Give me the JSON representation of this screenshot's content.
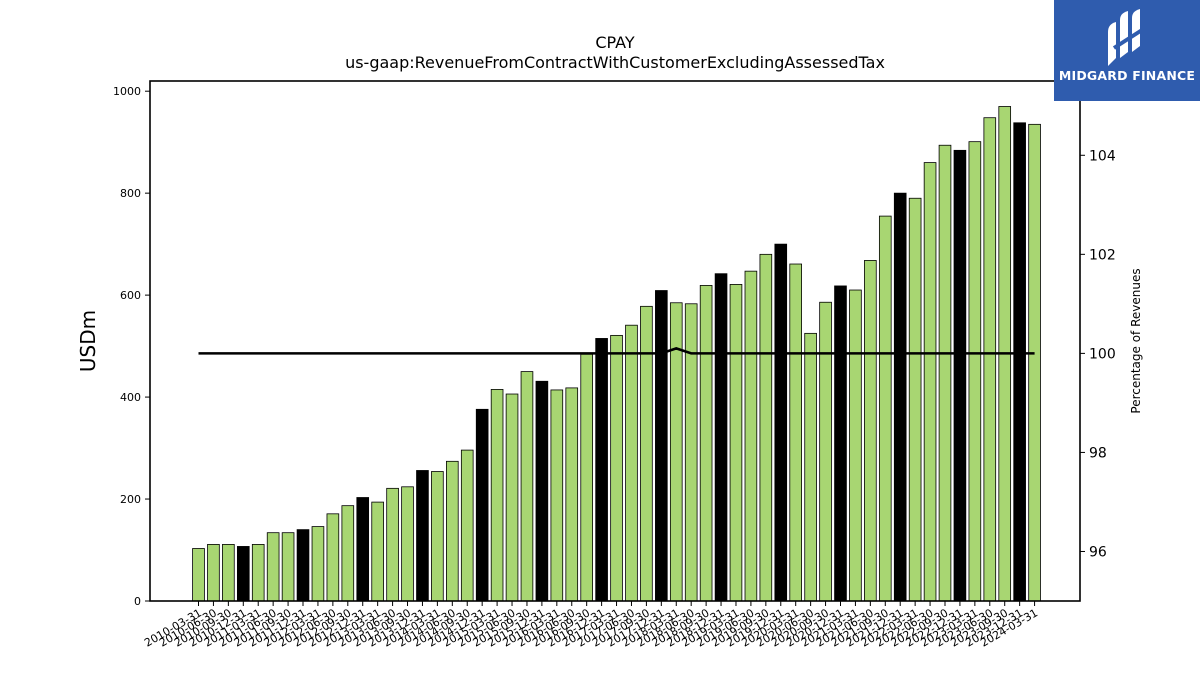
{
  "brand": {
    "name": "MIDGARD FINANCE",
    "bg": "#2f5cae"
  },
  "chart_data": {
    "type": "bar",
    "title": "CPAY",
    "subtitle": "us-gaap:RevenueFromContractWithCustomerExcludingAssessedTax",
    "ylabel": "USDm",
    "y2label": "Percentage of Revenues",
    "ylim": [
      0,
      1020
    ],
    "y2lim": [
      95,
      105.5
    ],
    "yticks": [
      0,
      200,
      400,
      600,
      800,
      1000
    ],
    "y2ticks": [
      96,
      98,
      100,
      102,
      104
    ],
    "colors": {
      "quarter": "#a8d672",
      "year_end": "#000000",
      "line": "#000000"
    },
    "categories": [
      "2010-03-31",
      "2010-06-30",
      "2010-09-30",
      "2010-12-31",
      "2011-03-31",
      "2011-06-30",
      "2011-09-30",
      "2011-12-31",
      "2012-03-31",
      "2012-06-30",
      "2012-09-30",
      "2012-12-31",
      "2013-03-31",
      "2013-06-30",
      "2013-09-30",
      "2013-12-31",
      "2014-03-31",
      "2014-06-30",
      "2014-09-30",
      "2014-12-31",
      "2015-03-31",
      "2015-06-30",
      "2015-09-30",
      "2015-12-31",
      "2016-03-31",
      "2016-06-30",
      "2016-09-30",
      "2016-12-31",
      "2017-03-31",
      "2017-06-30",
      "2017-09-30",
      "2017-12-31",
      "2018-03-31",
      "2018-06-30",
      "2018-09-30",
      "2018-12-31",
      "2019-03-31",
      "2019-06-30",
      "2019-09-30",
      "2019-12-31",
      "2020-03-31",
      "2020-06-30",
      "2020-09-30",
      "2020-12-31",
      "2021-03-31",
      "2021-06-30",
      "2021-09-30",
      "2021-12-31",
      "2022-03-31",
      "2022-06-30",
      "2022-09-30",
      "2022-12-31",
      "2023-03-31",
      "2023-06-30",
      "2023-09-30",
      "2023-12-31",
      "2024-03-31"
    ],
    "series": [
      {
        "values": [
          103,
          111,
          111,
          107,
          111,
          134,
          134,
          140,
          146,
          171,
          187,
          203,
          194,
          221,
          224,
          256,
          254,
          274,
          296,
          376,
          415,
          406,
          450,
          431,
          414,
          418,
          484,
          515,
          521,
          541,
          578,
          609,
          585,
          583,
          619,
          642,
          621,
          647,
          680,
          700,
          661,
          525,
          586,
          618,
          610,
          668,
          755,
          800,
          790,
          860,
          894,
          884,
          901,
          948,
          970,
          938,
          935
        ],
        "year_end": [
          false,
          false,
          false,
          true,
          false,
          false,
          false,
          true,
          false,
          false,
          false,
          true,
          false,
          false,
          false,
          true,
          false,
          false,
          false,
          true,
          false,
          false,
          false,
          true,
          false,
          false,
          false,
          true,
          false,
          false,
          false,
          true,
          false,
          false,
          false,
          true,
          false,
          false,
          false,
          true,
          false,
          false,
          false,
          true,
          false,
          false,
          false,
          true,
          false,
          false,
          false,
          true,
          false,
          false,
          false,
          true,
          false
        ]
      }
    ],
    "line": {
      "axis": "right",
      "values": [
        100,
        100,
        100,
        100,
        100,
        100,
        100,
        100,
        100,
        100,
        100,
        100,
        100,
        100,
        100,
        100,
        100,
        100,
        100,
        100,
        100,
        100,
        100,
        100,
        100,
        100,
        100,
        100,
        100,
        100,
        100,
        100,
        100.1,
        100,
        100,
        100,
        100,
        100,
        100,
        100,
        100,
        100,
        100,
        100,
        100,
        100,
        100,
        100,
        100,
        100,
        100,
        100,
        100,
        100,
        100,
        100,
        100
      ]
    },
    "grid": false,
    "legend": "none"
  }
}
